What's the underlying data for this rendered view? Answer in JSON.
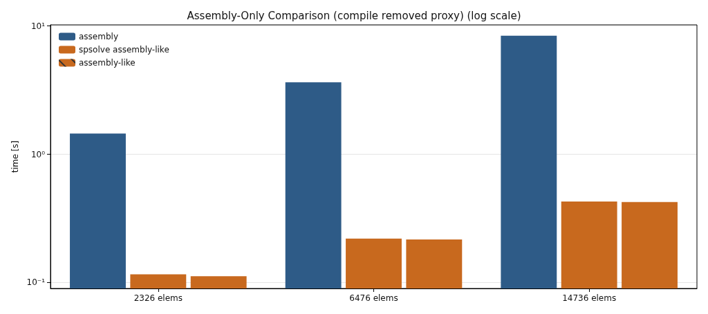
{
  "chart_data": {
    "type": "bar",
    "title": "Assembly-Only Comparison (compile removed proxy) (log scale)",
    "ylabel": "time [s]",
    "categories": [
      "2326 elems",
      "6476 elems",
      "14736 elems"
    ],
    "series": [
      {
        "name": "assembly",
        "color": "#2e5b87",
        "values": [
          1.45,
          3.64,
          8.4
        ]
      },
      {
        "name": "spsolve assembly-like",
        "color": "#c8691e",
        "values": [
          0.116,
          0.22,
          0.428
        ]
      },
      {
        "name": "assembly-like",
        "color": "#c8691e",
        "values": [
          0.112,
          0.217,
          0.424
        ]
      }
    ],
    "log": true,
    "ylim": [
      0.09,
      10.2
    ],
    "yticks": [
      {
        "value": 0.1,
        "label": "10⁻¹"
      },
      {
        "value": 1,
        "label": "10⁰"
      },
      {
        "value": 10,
        "label": "10¹"
      }
    ],
    "grid": "y",
    "legend": "top left"
  }
}
